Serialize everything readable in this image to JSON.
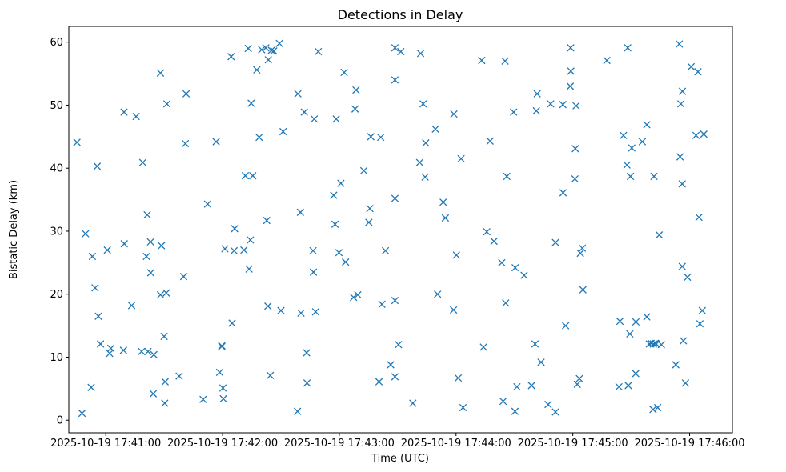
{
  "chart_data": {
    "type": "scatter",
    "title": "Detections in Delay",
    "xlabel": "Time (UTC)",
    "ylabel": "Bistatic Delay (km)",
    "x_unit": "seconds after 2025-10-19 17:41:00 UTC",
    "xlim": [
      -19,
      322
    ],
    "ylim": [
      -2,
      62.5
    ],
    "marker": "x",
    "marker_color": "#1f77b4",
    "grid": false,
    "x_ticks": [
      {
        "value": 0,
        "label": "2025-10-19 17:41:00"
      },
      {
        "value": 60,
        "label": "2025-10-19 17:42:00"
      },
      {
        "value": 120,
        "label": "2025-10-19 17:43:00"
      },
      {
        "value": 180,
        "label": "2025-10-19 17:44:00"
      },
      {
        "value": 240,
        "label": "2025-10-19 17:45:00"
      },
      {
        "value": 300,
        "label": "2025-10-19 17:46:00"
      }
    ],
    "y_ticks": [
      {
        "value": 0,
        "label": "0"
      },
      {
        "value": 10,
        "label": "10"
      },
      {
        "value": 20,
        "label": "20"
      },
      {
        "value": 30,
        "label": "30"
      },
      {
        "value": 40,
        "label": "40"
      },
      {
        "value": 50,
        "label": "50"
      },
      {
        "value": 60,
        "label": "60"
      }
    ],
    "points": [
      [
        -14.8,
        44.1
      ],
      [
        -12.2,
        1.1
      ],
      [
        -10.4,
        29.6
      ],
      [
        -7.5,
        5.2
      ],
      [
        -6.9,
        26.0
      ],
      [
        -5.5,
        21.0
      ],
      [
        -4.4,
        40.3
      ],
      [
        -3.8,
        16.5
      ],
      [
        -2.7,
        12.1
      ],
      [
        0.8,
        27.0
      ],
      [
        2.0,
        10.6
      ],
      [
        2.6,
        11.4
      ],
      [
        9.1,
        11.1
      ],
      [
        9.4,
        48.9
      ],
      [
        9.5,
        28.0
      ],
      [
        13.3,
        18.2
      ],
      [
        15.6,
        48.2
      ],
      [
        18.4,
        10.9
      ],
      [
        19.0,
        40.9
      ],
      [
        20.9,
        26.0
      ],
      [
        21.7,
        10.9
      ],
      [
        21.3,
        32.6
      ],
      [
        23.0,
        28.3
      ],
      [
        23.1,
        23.4
      ],
      [
        24.7,
        10.4
      ],
      [
        24.4,
        4.2
      ],
      [
        28.1,
        55.1
      ],
      [
        28.6,
        27.7
      ],
      [
        28.1,
        19.9
      ],
      [
        30.0,
        13.3
      ],
      [
        30.5,
        6.1
      ],
      [
        30.3,
        2.7
      ],
      [
        31.1,
        20.2
      ],
      [
        31.4,
        50.2
      ],
      [
        37.7,
        7.0
      ],
      [
        40.0,
        22.8
      ],
      [
        40.9,
        43.9
      ],
      [
        41.3,
        51.8
      ],
      [
        50.0,
        3.3
      ],
      [
        52.3,
        34.3
      ],
      [
        56.7,
        44.2
      ],
      [
        58.5,
        7.6
      ],
      [
        59.6,
        11.8
      ],
      [
        59.6,
        11.7
      ],
      [
        60.2,
        5.1
      ],
      [
        60.4,
        3.4
      ],
      [
        61.2,
        27.2
      ],
      [
        64.4,
        57.7
      ],
      [
        64.9,
        15.4
      ],
      [
        65.9,
        26.9
      ],
      [
        66.2,
        30.4
      ],
      [
        71.0,
        27.0
      ],
      [
        71.7,
        38.8
      ],
      [
        73.2,
        59.0
      ],
      [
        73.6,
        24.0
      ],
      [
        74.3,
        28.6
      ],
      [
        74.7,
        50.3
      ],
      [
        75.5,
        38.8
      ],
      [
        77.6,
        55.6
      ],
      [
        78.8,
        44.9
      ],
      [
        80.1,
        58.8
      ],
      [
        82.2,
        59.1
      ],
      [
        82.7,
        31.7
      ],
      [
        83.3,
        18.1
      ],
      [
        83.5,
        57.2
      ],
      [
        84.5,
        7.1
      ],
      [
        85.1,
        58.7
      ],
      [
        86.3,
        58.6
      ],
      [
        89.2,
        59.8
      ],
      [
        90.0,
        17.4
      ],
      [
        91.1,
        45.8
      ],
      [
        98.5,
        1.4
      ],
      [
        98.7,
        51.8
      ],
      [
        100.0,
        33.0
      ],
      [
        100.3,
        17.0
      ],
      [
        102.0,
        48.9
      ],
      [
        103.2,
        10.7
      ],
      [
        103.4,
        5.9
      ],
      [
        106.5,
        26.9
      ],
      [
        106.7,
        23.5
      ],
      [
        107.1,
        47.8
      ],
      [
        107.8,
        17.2
      ],
      [
        109.2,
        58.5
      ],
      [
        117.1,
        35.7
      ],
      [
        117.8,
        31.1
      ],
      [
        118.4,
        47.8
      ],
      [
        119.8,
        26.6
      ],
      [
        120.8,
        37.6
      ],
      [
        122.5,
        55.2
      ],
      [
        123.2,
        25.1
      ],
      [
        127.3,
        19.5
      ],
      [
        128.1,
        49.4
      ],
      [
        128.6,
        52.4
      ],
      [
        129.5,
        19.9
      ],
      [
        132.6,
        39.6
      ],
      [
        135.2,
        31.4
      ],
      [
        135.7,
        33.6
      ],
      [
        136.2,
        45.0
      ],
      [
        140.4,
        6.1
      ],
      [
        141.3,
        44.9
      ],
      [
        141.9,
        18.4
      ],
      [
        143.7,
        26.9
      ],
      [
        146.4,
        8.8
      ],
      [
        148.6,
        59.1
      ],
      [
        148.6,
        54.0
      ],
      [
        148.6,
        35.2
      ],
      [
        148.6,
        19.0
      ],
      [
        148.6,
        6.9
      ],
      [
        150.4,
        12.0
      ],
      [
        151.6,
        58.5
      ],
      [
        157.8,
        2.7
      ],
      [
        161.8,
        58.2
      ],
      [
        161.3,
        40.9
      ],
      [
        163.1,
        50.2
      ],
      [
        164.4,
        44.0
      ],
      [
        164.1,
        38.6
      ],
      [
        169.4,
        46.2
      ],
      [
        170.5,
        20.0
      ],
      [
        173.4,
        34.6
      ],
      [
        174.5,
        32.1
      ],
      [
        178.7,
        17.5
      ],
      [
        178.9,
        48.6
      ],
      [
        180.2,
        26.2
      ],
      [
        181.1,
        6.7
      ],
      [
        182.6,
        41.5
      ],
      [
        183.6,
        2.0
      ],
      [
        193.2,
        57.1
      ],
      [
        194.1,
        11.6
      ],
      [
        195.8,
        29.9
      ],
      [
        197.5,
        44.3
      ],
      [
        199.5,
        28.4
      ],
      [
        203.5,
        25.0
      ],
      [
        204.2,
        3.0
      ],
      [
        205.2,
        57.0
      ],
      [
        205.5,
        18.6
      ],
      [
        206.1,
        38.7
      ],
      [
        209.6,
        48.9
      ],
      [
        210.4,
        24.2
      ],
      [
        210.3,
        1.4
      ],
      [
        211.3,
        5.3
      ],
      [
        215.0,
        23.0
      ],
      [
        218.8,
        5.5
      ],
      [
        220.6,
        12.1
      ],
      [
        221.3,
        49.1
      ],
      [
        221.7,
        51.8
      ],
      [
        223.7,
        9.2
      ],
      [
        227.3,
        2.5
      ],
      [
        228.6,
        50.2
      ],
      [
        231.1,
        28.2
      ],
      [
        231.1,
        1.3
      ],
      [
        234.9,
        50.1
      ],
      [
        235.0,
        36.1
      ],
      [
        236.3,
        15.0
      ],
      [
        238.7,
        53.0
      ],
      [
        239.0,
        55.4
      ],
      [
        238.9,
        59.1
      ],
      [
        241.3,
        43.1
      ],
      [
        241.1,
        38.3
      ],
      [
        241.7,
        49.9
      ],
      [
        242.3,
        5.7
      ],
      [
        243.4,
        6.6
      ],
      [
        243.9,
        26.5
      ],
      [
        244.9,
        27.3
      ],
      [
        245.2,
        20.7
      ],
      [
        257.5,
        57.1
      ],
      [
        263.7,
        5.3
      ],
      [
        264.2,
        15.7
      ],
      [
        266.0,
        45.2
      ],
      [
        268.2,
        59.1
      ],
      [
        267.8,
        40.5
      ],
      [
        268.5,
        5.5
      ],
      [
        269.3,
        13.7
      ],
      [
        269.6,
        38.7
      ],
      [
        270.3,
        43.2
      ],
      [
        272.3,
        7.4
      ],
      [
        272.4,
        15.6
      ],
      [
        275.7,
        44.2
      ],
      [
        278.0,
        16.4
      ],
      [
        278.0,
        46.9
      ],
      [
        279.3,
        12.1
      ],
      [
        280.2,
        12.2
      ],
      [
        281.4,
        12.1
      ],
      [
        281.2,
        1.7
      ],
      [
        281.7,
        38.7
      ],
      [
        282.4,
        12.2
      ],
      [
        282.9,
        12.1
      ],
      [
        283.6,
        2.0
      ],
      [
        284.4,
        29.4
      ],
      [
        285.5,
        12.0
      ],
      [
        292.9,
        8.8
      ],
      [
        294.7,
        59.7
      ],
      [
        295.1,
        41.8
      ],
      [
        295.5,
        50.2
      ],
      [
        296.3,
        52.2
      ],
      [
        296.2,
        37.5
      ],
      [
        296.2,
        24.4
      ],
      [
        296.8,
        12.6
      ],
      [
        297.9,
        5.9
      ],
      [
        298.9,
        22.7
      ],
      [
        300.8,
        56.1
      ],
      [
        303.3,
        45.2
      ],
      [
        304.3,
        55.3
      ],
      [
        304.8,
        32.2
      ],
      [
        305.3,
        15.3
      ],
      [
        306.5,
        17.4
      ],
      [
        307.3,
        45.4
      ]
    ]
  }
}
